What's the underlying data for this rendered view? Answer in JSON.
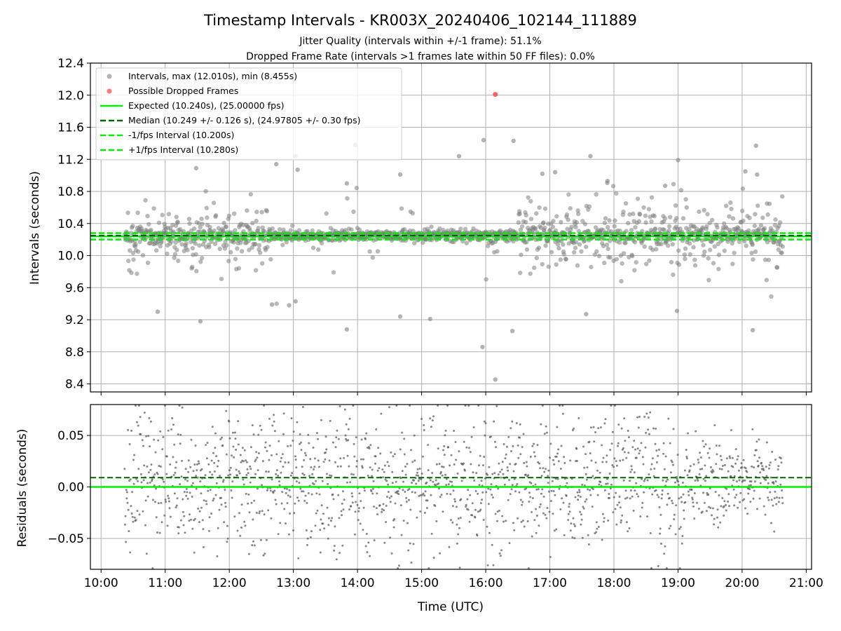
{
  "chart_data": [
    {
      "type": "scatter",
      "title": "Timestamp Intervals - KR003X_20240406_102144_111889",
      "subtitle_1": "Jitter Quality (intervals within +/-1 frame): 51.1%",
      "subtitle_2": "Dropped Frame Rate (intervals >1 frames late within 50 FF files): 0.0%",
      "xlabel": "",
      "ylabel": "Intervals (seconds)",
      "xlim": [
        "09:50",
        "21:05"
      ],
      "ylim": [
        8.3,
        12.4
      ],
      "y_ticks": [
        "8.4",
        "8.8",
        "9.2",
        "9.6",
        "10.0",
        "10.4",
        "10.8",
        "11.2",
        "11.6",
        "12.0",
        "12.4"
      ],
      "x_ticks": [
        "10:00",
        "11:00",
        "12:00",
        "13:00",
        "14:00",
        "15:00",
        "16:00",
        "17:00",
        "18:00",
        "19:00",
        "20:00",
        "21:00"
      ],
      "grid": true,
      "legend_position": "top-left",
      "legend": [
        {
          "label": "Intervals, max (12.010s), min (8.455s)",
          "kind": "marker",
          "color": "#808080"
        },
        {
          "label": "Possible Dropped Frames",
          "kind": "marker",
          "color": "#ff4040"
        },
        {
          "label": "Expected (10.240s), (25.00000 fps)",
          "kind": "solid",
          "color": "#00ee00"
        },
        {
          "label": "Median (10.249 +/- 0.126 s), (24.97805 +/- 0.30 fps)",
          "kind": "dashed",
          "color": "#006400"
        },
        {
          "label": "-1/fps Interval (10.200s)",
          "kind": "dashed",
          "color": "#00ee00"
        },
        {
          "label": "+1/fps Interval (10.280s)",
          "kind": "dashed",
          "color": "#00ee00"
        }
      ],
      "reference_lines": {
        "expected": 10.24,
        "median": 10.249,
        "minus_one_fps": 10.2,
        "plus_one_fps": 10.28
      },
      "data_range": {
        "start": "10:22",
        "end": "20:38"
      },
      "max_interval": 12.01,
      "min_interval": 8.455,
      "dropped_frames": [
        {
          "x": "16:09",
          "y": 12.01
        }
      ],
      "outliers": [
        {
          "x": "16:09",
          "y": 8.455
        },
        {
          "x": "15:57",
          "y": 8.86
        },
        {
          "x": "16:25",
          "y": 9.06
        },
        {
          "x": "13:50",
          "y": 9.08
        },
        {
          "x": "20:10",
          "y": 9.07
        },
        {
          "x": "14:40",
          "y": 9.24
        },
        {
          "x": "15:08",
          "y": 9.21
        },
        {
          "x": "11:33",
          "y": 9.18
        },
        {
          "x": "12:56",
          "y": 9.38
        },
        {
          "x": "12:40",
          "y": 9.39
        },
        {
          "x": "13:02",
          "y": 9.43
        },
        {
          "x": "17:34",
          "y": 9.27
        },
        {
          "x": "18:59",
          "y": 9.31
        },
        {
          "x": "10:53",
          "y": 9.3
        },
        {
          "x": "13:58",
          "y": 11.38
        },
        {
          "x": "15:58",
          "y": 11.44
        },
        {
          "x": "16:26",
          "y": 11.43
        },
        {
          "x": "13:02",
          "y": 11.24
        },
        {
          "x": "15:35",
          "y": 11.24
        },
        {
          "x": "20:13",
          "y": 11.37
        },
        {
          "x": "17:38",
          "y": 11.24
        },
        {
          "x": "19:00",
          "y": 11.19
        },
        {
          "x": "20:14",
          "y": 11.01
        },
        {
          "x": "20:03",
          "y": 11.05
        },
        {
          "x": "11:29",
          "y": 11.09
        },
        {
          "x": "12:44",
          "y": 11.14
        },
        {
          "x": "13:04",
          "y": 11.07
        },
        {
          "x": "13:50",
          "y": 10.9
        },
        {
          "x": "14:40",
          "y": 11.01
        },
        {
          "x": "16:53",
          "y": 11.02
        },
        {
          "x": "17:05",
          "y": 11.04
        },
        {
          "x": "17:54",
          "y": 10.93
        },
        {
          "x": "18:48",
          "y": 10.87
        }
      ]
    },
    {
      "type": "scatter",
      "title": "",
      "xlabel": "Time (UTC)",
      "ylabel": "Residuals (seconds)",
      "ylim": [
        -0.08,
        0.08
      ],
      "y_ticks": [
        "−0.05",
        "0.00",
        "0.05"
      ],
      "x_ticks": [
        "10:00",
        "11:00",
        "12:00",
        "13:00",
        "14:00",
        "15:00",
        "16:00",
        "17:00",
        "18:00",
        "19:00",
        "20:00",
        "21:00"
      ],
      "grid": true,
      "reference_lines": {
        "zero": 0.0,
        "median_offset": 0.009
      },
      "data_range": {
        "start": "10:22",
        "end": "20:38"
      }
    }
  ],
  "colors": {
    "points": "#808080",
    "dropped": "#ff4040",
    "expected": "#00ee00",
    "median": "#006400",
    "grid": "#b0b0b0"
  }
}
